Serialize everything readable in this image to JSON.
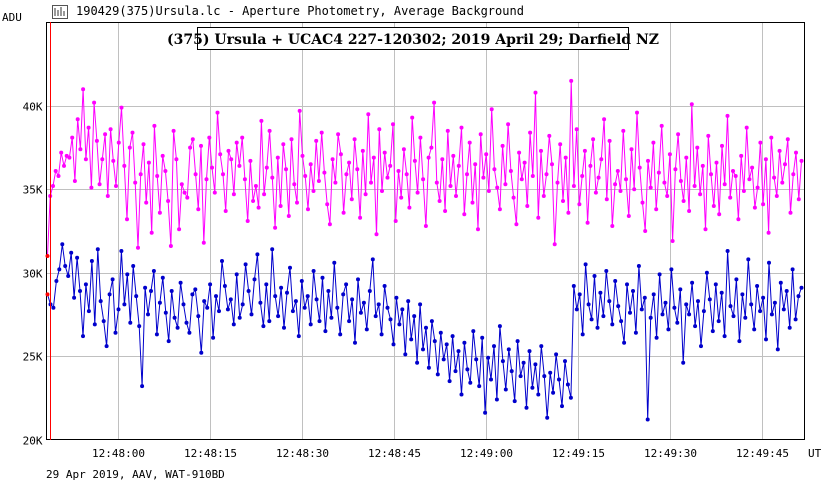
{
  "window": {
    "title": "190429(375)Ursula.lc - Aperture Photometry, Average Background",
    "icon": "lightcurve-icon"
  },
  "footer": "29 Apr 2019, AAV, WAT-910BD",
  "chart_data": {
    "type": "line",
    "title": "(375) Ursula + UCAC4 227-120302; 2019 April 29; Darfield NZ",
    "ylabel": "ADU",
    "xlabel": "UT",
    "ylim": [
      20000,
      45000
    ],
    "xlim": [
      "12:47:48.3",
      "12:49:51.9"
    ],
    "yticks": [
      "20K",
      "25K",
      "30K",
      "35K",
      "40K"
    ],
    "yticks_values": [
      20000,
      25000,
      30000,
      35000,
      40000
    ],
    "xticks": [
      "12:48:00",
      "12:48:15",
      "12:48:30",
      "12:48:45",
      "12:49:00",
      "12:49:15",
      "12:49:30",
      "12:49:45"
    ],
    "grid": true,
    "cursor_time": "12:47:48.9",
    "series": [
      {
        "color": "#ff00ff",
        "values": [
          31000,
          34600,
          35200,
          36100,
          35800,
          37200,
          36400,
          37000,
          36900,
          38100,
          35500,
          39200,
          37400,
          41000,
          36800,
          38700,
          35100,
          40200,
          37900,
          35300,
          36800,
          38300,
          34600,
          38600,
          36700,
          35200,
          37800,
          39900,
          36400,
          33200,
          37500,
          38400,
          35400,
          31500,
          35900,
          37700,
          34200,
          36600,
          32400,
          38800,
          35800,
          33600,
          37000,
          36100,
          34300,
          31600,
          38500,
          36800,
          32600,
          35300,
          34800,
          34500,
          37500,
          38000,
          35900,
          33800,
          37600,
          31800,
          35600,
          38100,
          36300,
          34800,
          39600,
          37100,
          35900,
          33700,
          37300,
          36800,
          34700,
          37800,
          36400,
          38100,
          35600,
          33100,
          36700,
          34300,
          35200,
          33900,
          39100,
          34700,
          36300,
          38500,
          35700,
          32700,
          36900,
          34000,
          37700,
          36200,
          33400,
          38000,
          35300,
          34200,
          39700,
          37000,
          35800,
          33800,
          36500,
          34900,
          37900,
          35500,
          38400,
          36000,
          34100,
          32900,
          36800,
          35400,
          38300,
          37100,
          33600,
          35900,
          36600,
          34400,
          38000,
          36200,
          33300,
          37300,
          34700,
          39500,
          35400,
          36900,
          32300,
          38600,
          34900,
          37200,
          35700,
          36400,
          38900,
          33100,
          36100,
          34500,
          37400,
          35900,
          33900,
          39300,
          36700,
          34800,
          38100,
          35600,
          32800,
          36900,
          37500,
          40200,
          35400,
          34300,
          36800,
          33700,
          38500,
          35200,
          37000,
          34600,
          36400,
          38700,
          33500,
          35900,
          37800,
          34200,
          36500,
          32600,
          38300,
          35700,
          37100,
          34900,
          39800,
          36200,
          35100,
          33800,
          37600,
          35300,
          38900,
          36100,
          34500,
          32900,
          37200,
          35600,
          36600,
          34000,
          38400,
          35800,
          40800,
          33300,
          37300,
          34600,
          35900,
          38200,
          36500,
          31700,
          35400,
          37700,
          34300,
          36900,
          33600,
          41500,
          35200,
          38600,
          34100,
          35800,
          37300,
          33000,
          36400,
          38000,
          34800,
          35700,
          36800,
          39200,
          34400,
          37900,
          32800,
          35300,
          36100,
          34900,
          38500,
          35600,
          33400,
          37400,
          35000,
          39600,
          36300,
          34200,
          32500,
          36700,
          35100,
          37800,
          33800,
          36000,
          38800,
          35400,
          34600,
          37100,
          31900,
          36200,
          38300,
          35500,
          34300,
          36900,
          33700,
          40100,
          35200,
          37500,
          34700,
          36400,
          32600,
          38200,
          35900,
          34000,
          36600,
          33500,
          37600,
          35300,
          39400,
          34500,
          36100,
          35800,
          33200,
          37000,
          34900,
          38700,
          35600,
          36300,
          33900,
          35100,
          37800,
          34100,
          36800,
          32400,
          38100,
          35700,
          34600,
          37300,
          35400,
          36500,
          38000,
          33600,
          35900,
          37200,
          34400,
          36700
        ],
        "name": ""
      },
      {
        "color": "#0000cc",
        "values": [
          28700,
          28100,
          27900,
          29500,
          30200,
          31700,
          30400,
          29800,
          31200,
          28500,
          30900,
          28900,
          26200,
          29300,
          27700,
          30700,
          26900,
          31400,
          28300,
          27100,
          25600,
          28700,
          29600,
          26400,
          27800,
          31300,
          28100,
          29900,
          27000,
          30400,
          28600,
          26800,
          23200,
          29100,
          27500,
          28900,
          30100,
          26300,
          28200,
          29700,
          27600,
          25900,
          28900,
          27300,
          26700,
          29400,
          28100,
          27000,
          26400,
          28700,
          29000,
          27400,
          25200,
          28300,
          27900,
          29300,
          26100,
          28600,
          27700,
          30700,
          29200,
          27800,
          28400,
          26900,
          29900,
          27300,
          28100,
          30500,
          28900,
          27500,
          29600,
          31100,
          28200,
          26800,
          29300,
          27100,
          31400,
          28600,
          27400,
          29100,
          26700,
          28800,
          30300,
          27700,
          28300,
          26200,
          29500,
          27900,
          28600,
          26900,
          30100,
          28400,
          27100,
          29700,
          26500,
          28900,
          27300,
          30600,
          27900,
          26300,
          28700,
          29300,
          27100,
          28400,
          25800,
          29600,
          27600,
          28200,
          26600,
          28900,
          30800,
          27400,
          28100,
          26300,
          29200,
          27900,
          27200,
          25700,
          28500,
          26900,
          27800,
          25100,
          28300,
          26000,
          27400,
          24600,
          28100,
          25400,
          26700,
          24300,
          27100,
          25900,
          23900,
          26400,
          24800,
          25700,
          23500,
          26200,
          24100,
          25300,
          22700,
          25800,
          24200,
          23400,
          26500,
          24800,
          23200,
          26100,
          21600,
          24900,
          23600,
          25600,
          22400,
          26800,
          24700,
          23000,
          25400,
          24100,
          22300,
          25900,
          23800,
          24600,
          21900,
          25300,
          23100,
          24500,
          22700,
          25600,
          23800,
          21300,
          24000,
          22800,
          25100,
          23600,
          22000,
          24700,
          23300,
          22500,
          29200,
          27800,
          28700,
          26300,
          30500,
          28100,
          27200,
          29800,
          26700,
          28800,
          27400,
          30100,
          28300,
          26900,
          29500,
          28000,
          27100,
          25800,
          29300,
          27600,
          28900,
          26400,
          30400,
          27800,
          28500,
          21200,
          27300,
          28700,
          26100,
          29900,
          27500,
          28200,
          26600,
          30200,
          27900,
          27000,
          29000,
          24600,
          28100,
          27500,
          29400,
          26800,
          28300,
          25600,
          27700,
          30000,
          28400,
          26500,
          29300,
          27100,
          28800,
          26200,
          31300,
          28000,
          27400,
          29600,
          25900,
          28700,
          27300,
          30800,
          28100,
          26600,
          29200,
          27700,
          28500,
          26000,
          30600,
          27500,
          28200,
          25400,
          29400,
          27800,
          28900,
          26700,
          30200,
          27200,
          28600,
          29100
        ]
      }
    ]
  }
}
